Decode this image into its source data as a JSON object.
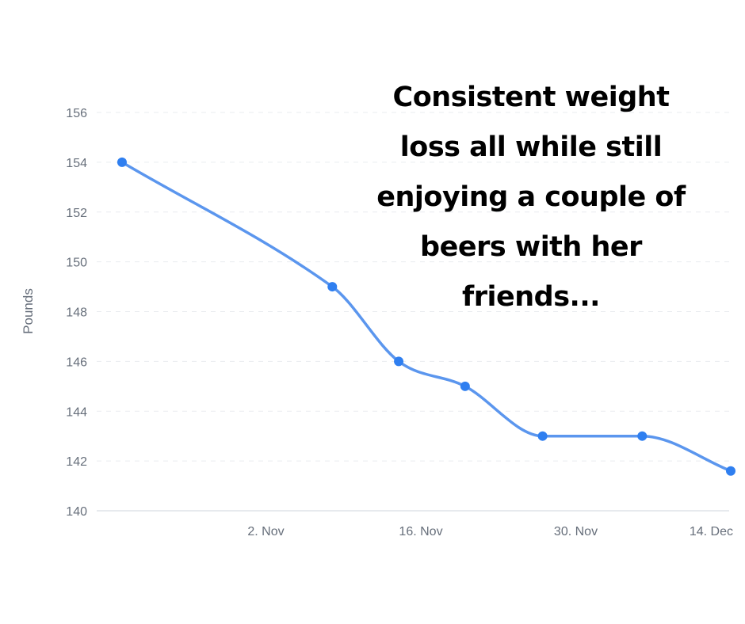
{
  "chart_data": {
    "type": "line",
    "title": "",
    "xlabel": "",
    "ylabel": "Pounds",
    "ylim": [
      140,
      156
    ],
    "yticks": [
      140,
      142,
      144,
      146,
      148,
      150,
      152,
      154,
      156
    ],
    "xlim": [
      "2023-10-19",
      "2023-12-14"
    ],
    "xticks": [
      {
        "date": "2023-11-02",
        "label": "2. Nov"
      },
      {
        "date": "2023-11-16",
        "label": "16. Nov"
      },
      {
        "date": "2023-11-30",
        "label": "30. Nov"
      },
      {
        "date": "2023-12-14",
        "label": "14. Dec"
      }
    ],
    "series": [
      {
        "color": "#5b96ee",
        "marker_color": "#2f7ff0",
        "points": [
          {
            "x": "2023-10-20",
            "y": 154
          },
          {
            "x": "2023-11-08",
            "y": 149
          },
          {
            "x": "2023-11-14",
            "y": 146
          },
          {
            "x": "2023-11-20",
            "y": 145
          },
          {
            "x": "2023-11-27",
            "y": 143
          },
          {
            "x": "2023-12-06",
            "y": 143
          },
          {
            "x": "2023-12-14",
            "y": 141.6
          }
        ]
      }
    ],
    "grid": true,
    "annotation": "Consistent weight loss all while still enjoying a couple of beers with her friends..."
  }
}
